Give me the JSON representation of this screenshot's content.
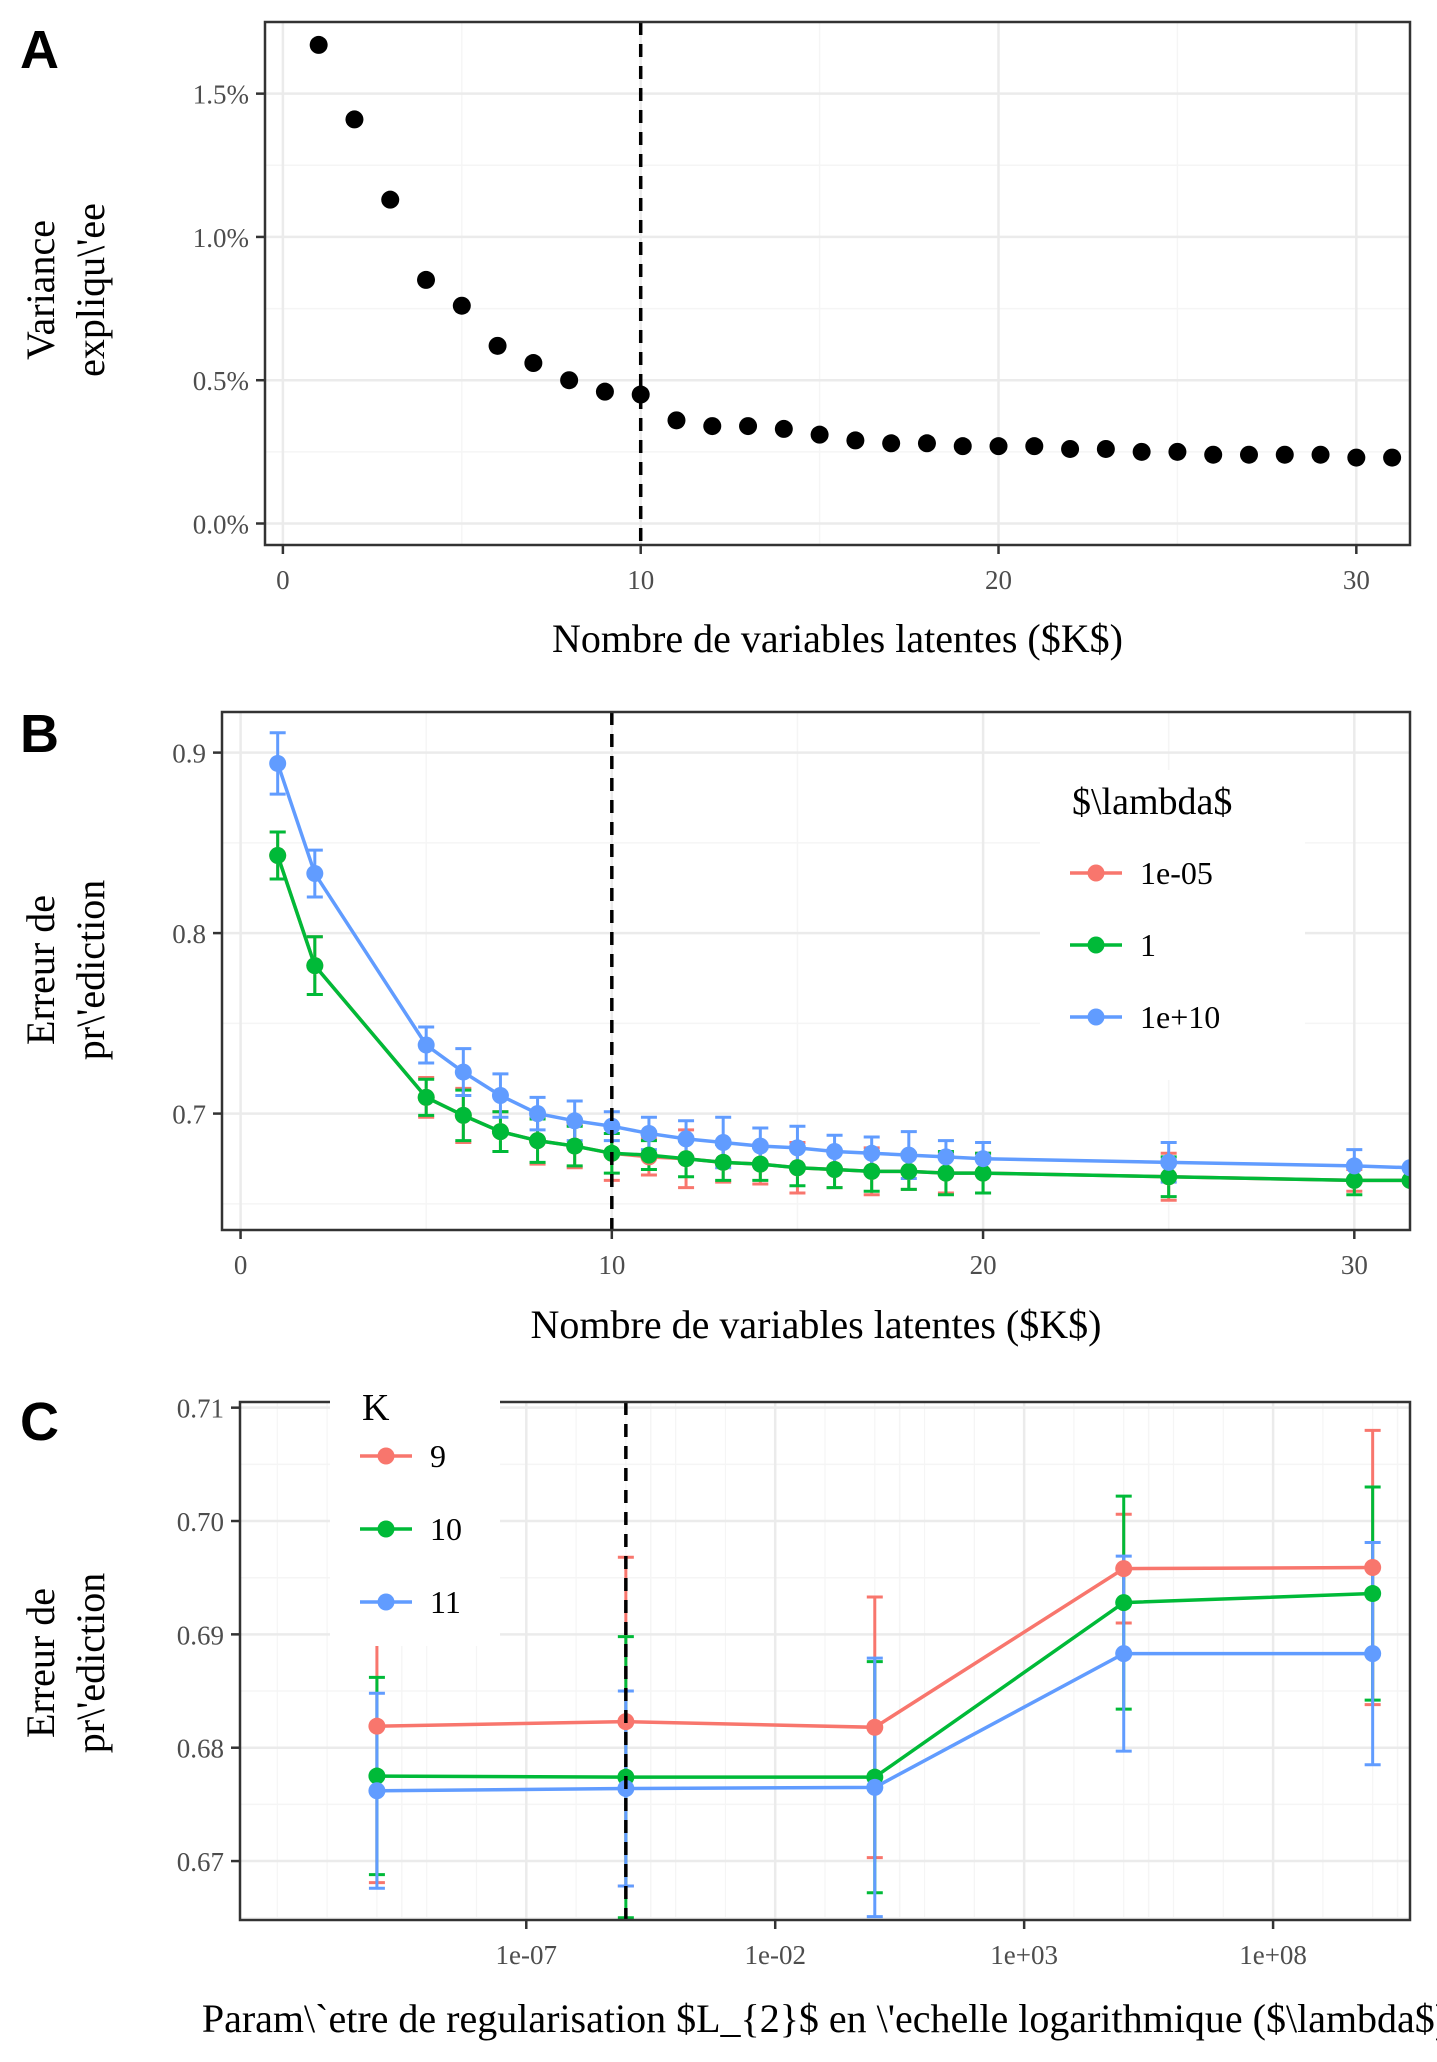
{
  "colors": {
    "red": "#F8766D",
    "green": "#00BA38",
    "blue": "#619CFF",
    "points": "#000000",
    "grid_major": "#EBEBEB",
    "grid_minor": "#F5F5F5",
    "panel_border": "#333333",
    "vline": "#000000"
  },
  "chart_data": [
    {
      "panel": "A",
      "type": "scatter",
      "xlabel": "Nombre de variables latentes ($K$)",
      "ylabel": [
        "Variance",
        "expliqu\\'ee"
      ],
      "xlim": [
        -0.5,
        31.5
      ],
      "ylim": [
        -0.00075,
        0.0175
      ],
      "xticks": [
        0,
        10,
        20,
        30
      ],
      "xtick_labels": [
        "0",
        "10",
        "20",
        "30"
      ],
      "yticks": [
        0,
        0.005,
        0.01,
        0.015
      ],
      "ytick_labels": [
        "0.0%",
        "0.5%",
        "1.0%",
        "1.5%"
      ],
      "vline": 10,
      "grid": true,
      "x": [
        1,
        2,
        3,
        4,
        5,
        6,
        7,
        8,
        9,
        10,
        11,
        12,
        13,
        14,
        15,
        16,
        17,
        18,
        19,
        20,
        21,
        22,
        23,
        24,
        25,
        26,
        27,
        28,
        29,
        30,
        31
      ],
      "y": [
        0.0167,
        0.0141,
        0.0113,
        0.0085,
        0.0076,
        0.0062,
        0.0056,
        0.005,
        0.0046,
        0.0045,
        0.0036,
        0.0034,
        0.0034,
        0.0033,
        0.0031,
        0.0029,
        0.0028,
        0.0028,
        0.0027,
        0.0027,
        0.0027,
        0.0026,
        0.0026,
        0.0025,
        0.0025,
        0.0024,
        0.0024,
        0.0024,
        0.0024,
        0.0023,
        0.0023
      ]
    },
    {
      "panel": "B",
      "type": "line",
      "xlabel": "Nombre de variables latentes ($K$)",
      "ylabel": [
        "Erreur de",
        "pr\\'ediction"
      ],
      "xlim": [
        -0.5,
        31.5
      ],
      "ylim": [
        0.6355,
        0.9225
      ],
      "xticks": [
        0,
        10,
        20,
        30
      ],
      "xtick_labels": [
        "0",
        "10",
        "20",
        "30"
      ],
      "yticks": [
        0.7,
        0.8,
        0.9
      ],
      "ytick_labels": [
        "0.7",
        "0.8",
        "0.9"
      ],
      "vline": 10,
      "grid": true,
      "legend_title": "$\\lambda$",
      "legend_position": "top-right",
      "x": [
        1,
        2,
        5,
        6,
        7,
        8,
        9,
        10,
        11,
        12,
        13,
        14,
        15,
        16,
        17,
        18,
        19,
        20,
        25,
        30,
        31.5
      ],
      "series": [
        {
          "name": "1e-05",
          "color": "red",
          "values": [
            0.843,
            0.782,
            0.709,
            0.699,
            0.69,
            0.685,
            0.682,
            0.678,
            0.676,
            0.675,
            0.673,
            0.672,
            0.67,
            0.669,
            0.668,
            0.668,
            0.667,
            0.667,
            0.665,
            0.663,
            0.663
          ],
          "err": [
            0.013,
            0.016,
            0.011,
            0.015,
            0.011,
            0.013,
            0.012,
            0.015,
            0.01,
            0.016,
            0.011,
            0.011,
            0.014,
            0.01,
            0.013,
            0.01,
            0.011,
            0.011,
            0.013,
            0.006,
            null
          ]
        },
        {
          "name": "1",
          "color": "green",
          "values": [
            0.843,
            0.782,
            0.709,
            0.699,
            0.69,
            0.685,
            0.682,
            0.678,
            0.677,
            0.675,
            0.673,
            0.672,
            0.67,
            0.669,
            0.668,
            0.668,
            0.667,
            0.667,
            0.665,
            0.663,
            0.663
          ],
          "err": [
            0.013,
            0.016,
            0.01,
            0.014,
            0.011,
            0.012,
            0.011,
            0.011,
            0.008,
            0.01,
            0.01,
            0.009,
            0.01,
            0.01,
            0.011,
            0.01,
            0.012,
            0.011,
            0.011,
            0.008,
            null
          ]
        },
        {
          "name": "1e+10",
          "color": "blue",
          "values": [
            0.894,
            0.833,
            0.738,
            0.723,
            0.71,
            0.7,
            0.696,
            0.693,
            0.689,
            0.686,
            0.684,
            0.682,
            0.681,
            0.679,
            0.678,
            0.677,
            0.676,
            0.675,
            0.673,
            0.671,
            0.67
          ],
          "err": [
            0.017,
            0.013,
            0.01,
            0.013,
            0.012,
            0.009,
            0.011,
            0.008,
            0.009,
            0.01,
            0.014,
            0.01,
            0.012,
            0.009,
            0.009,
            0.013,
            0.009,
            0.009,
            0.011,
            0.009,
            null
          ]
        }
      ]
    },
    {
      "panel": "C",
      "type": "line",
      "xlabel": "Param\\`etre de regularisation $L_{2}$ en \\'echelle logarithmique ($\\lambda$)",
      "ylabel": [
        "Erreur de",
        "pr\\'ediction"
      ],
      "x_scale": "log10",
      "xlim": [
        -12.75,
        10.75
      ],
      "ylim": [
        0.6648,
        0.7105
      ],
      "xticks": [
        -7,
        -2,
        3,
        8
      ],
      "xtick_labels": [
        "1e-07",
        "1e-02",
        "1e+03",
        "1e+08"
      ],
      "yticks": [
        0.67,
        0.68,
        0.69,
        0.7,
        0.71
      ],
      "ytick_labels": [
        "0.67",
        "0.68",
        "0.69",
        "0.70",
        "0.71"
      ],
      "vline": -5,
      "grid": true,
      "legend_title": "K",
      "legend_position": "top-left",
      "x": [
        -10,
        -5,
        0,
        5,
        10
      ],
      "series": [
        {
          "name": "9",
          "color": "red",
          "values": [
            0.6819,
            0.6823,
            0.6818,
            0.6958,
            0.6959
          ],
          "err": [
            0.0138,
            0.0145,
            0.0115,
            0.0048,
            0.0121
          ]
        },
        {
          "name": "10",
          "color": "green",
          "values": [
            0.6775,
            0.6774,
            0.6774,
            0.6928,
            0.6936
          ],
          "err": [
            0.0087,
            0.0124,
            0.0102,
            0.0094,
            0.0094
          ]
        },
        {
          "name": "11",
          "color": "blue",
          "values": [
            0.6762,
            0.6764,
            0.6765,
            0.6883,
            0.6883
          ],
          "err": [
            0.0086,
            0.0086,
            0.0114,
            0.0086,
            0.0098
          ]
        }
      ]
    }
  ]
}
